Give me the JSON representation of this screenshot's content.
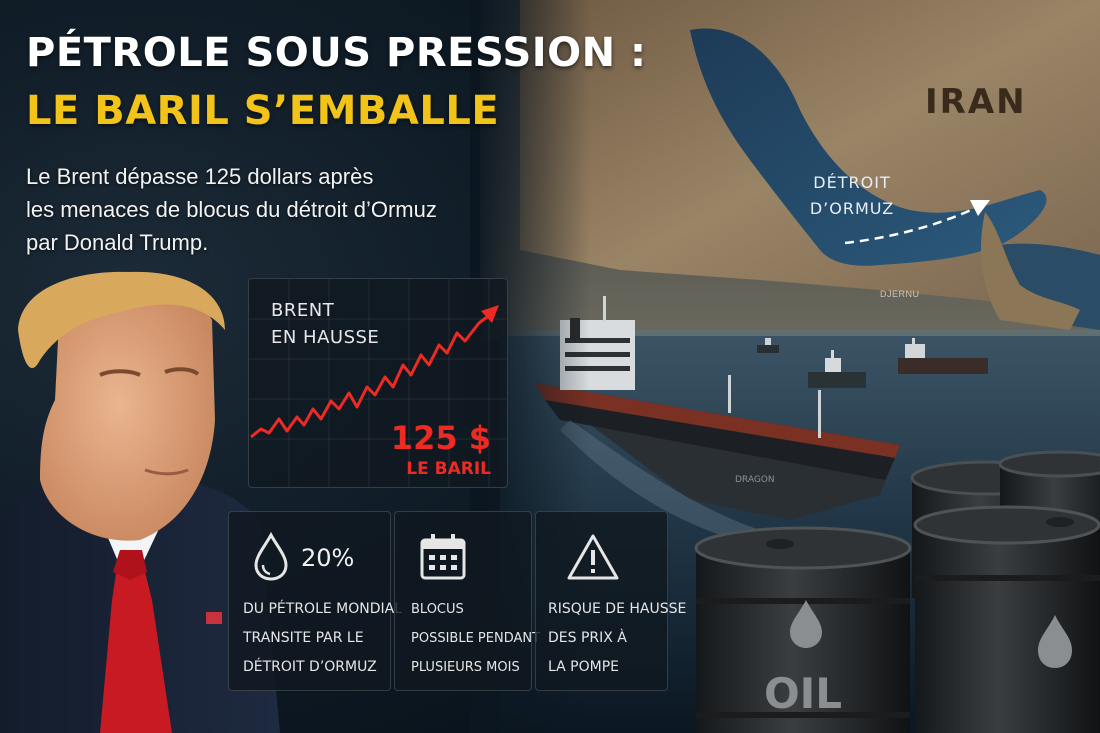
{
  "headline": {
    "line1": "PÉTROLE SOUS PRESSION :",
    "line2": "LE BARIL S’EMBALLE"
  },
  "subtitle": [
    "Le Brent dépasse 125 dollars après",
    "les menaces de blocus du détroit d’Ormuz",
    "par Donald Trump."
  ],
  "map": {
    "iran_label": "IRAN",
    "strait_label": [
      "DÉTROIT",
      "D’ORMUZ"
    ],
    "small_label": "DJERNU"
  },
  "chart": {
    "title": [
      "BRENT",
      "EN HAUSSE"
    ],
    "value": "125 $",
    "unit": "LE BARIL"
  },
  "cards": [
    {
      "icon": "oil-drop-icon",
      "stat": "20%",
      "lines": [
        "DU PÉTROLE MONDIAL",
        "TRANSITE PAR LE",
        "DÉTROIT D’ORMUZ"
      ]
    },
    {
      "icon": "calendar-icon",
      "lines": [
        "BLOCUS",
        "POSSIBLE PENDANT",
        "PLUSIEURS MOIS"
      ]
    },
    {
      "icon": "warning-icon",
      "lines": [
        "RISQUE DE HAUSSE",
        "DES PRIX À",
        "LA POMPE"
      ]
    }
  ],
  "scene": {
    "barrel_label": "OIL",
    "ship_name": "DRAGON"
  },
  "colors": {
    "accent_yellow": "#f2c319",
    "accent_red": "#ee2a24",
    "panel": "#101820"
  }
}
